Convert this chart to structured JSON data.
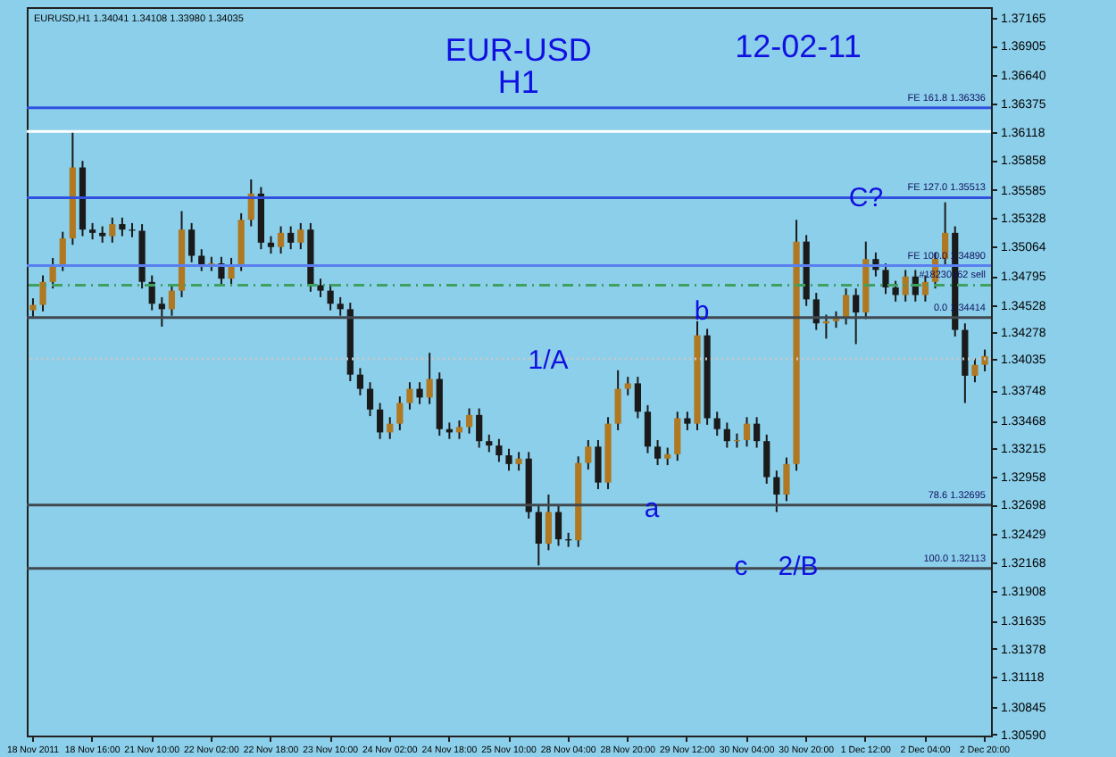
{
  "chart_data": {
    "type": "candlestick",
    "title": "EUR-USD",
    "subtitle": "H1",
    "annotations": [
      "12-02-11",
      "EURUSD,H1  1.34041 1.34108 1.33980 1.34035",
      {
        "text": "1/A",
        "y": 1.3403
      },
      {
        "text": "b",
        "y": 1.3448
      },
      {
        "text": "a",
        "y": 1.3267
      },
      "c",
      "2/B",
      {
        "text": "C?",
        "y": 1.3552
      }
    ],
    "categories": [
      "18 Nov 2011",
      null,
      null,
      null,
      null,
      null,
      "18 Nov 16:00",
      null,
      null,
      null,
      null,
      null,
      "21 Nov 10:00",
      null,
      null,
      null,
      null,
      null,
      "22 Nov 02:00",
      null,
      null,
      null,
      null,
      null,
      "22 Nov 18:00",
      null,
      null,
      null,
      null,
      null,
      "23 Nov 10:00",
      null,
      null,
      null,
      null,
      null,
      "24 Nov 02:00",
      null,
      null,
      null,
      null,
      null,
      "24 Nov 18:00",
      null,
      null,
      null,
      null,
      null,
      "25 Nov 10:00",
      null,
      null,
      null,
      null,
      null,
      "28 Nov 04:00",
      null,
      null,
      null,
      null,
      null,
      "28 Nov 20:00",
      null,
      null,
      null,
      null,
      null,
      "29 Nov 12:00",
      null,
      null,
      null,
      null,
      null,
      "30 Nov 04:00",
      null,
      null,
      null,
      null,
      null,
      "30 Nov 20:00",
      null,
      null,
      null,
      null,
      null,
      "1 Dec 12:00",
      null,
      null,
      null,
      null,
      null,
      "2 Dec 04:00",
      null,
      null,
      null,
      null,
      null,
      "2 Dec 20:00"
    ],
    "ohlc": [
      [
        1.3448,
        1.3459,
        1.3442,
        1.3453
      ],
      [
        1.3453,
        1.348,
        1.3447,
        1.3474
      ],
      [
        1.3474,
        1.3496,
        1.3468,
        1.349
      ],
      [
        1.349,
        1.352,
        1.3484,
        1.3514
      ],
      [
        1.3514,
        1.3612,
        1.3508,
        1.3579
      ],
      [
        1.3579,
        1.3585,
        1.3516,
        1.3522
      ],
      [
        1.3522,
        1.3528,
        1.3513,
        1.3519
      ],
      [
        1.3519,
        1.3525,
        1.351,
        1.3516
      ],
      [
        1.3516,
        1.3533,
        1.351,
        1.3527
      ],
      [
        1.3527,
        1.3533,
        1.3516,
        1.3522
      ],
      [
        1.3522,
        1.3528,
        1.3515,
        1.3521
      ],
      [
        1.3521,
        1.3527,
        1.3468,
        1.3474
      ],
      [
        1.3474,
        1.348,
        1.3448,
        1.3454
      ],
      [
        1.3454,
        1.346,
        1.3433,
        1.3449
      ],
      [
        1.3449,
        1.3472,
        1.3443,
        1.3466
      ],
      [
        1.3466,
        1.3539,
        1.346,
        1.3522
      ],
      [
        1.3522,
        1.3528,
        1.3492,
        1.3498
      ],
      [
        1.3498,
        1.3504,
        1.3484,
        1.349
      ],
      [
        1.349,
        1.3497,
        1.3484,
        1.3491
      ],
      [
        1.3491,
        1.3497,
        1.3471,
        1.3477
      ],
      [
        1.3477,
        1.3496,
        1.3471,
        1.349
      ],
      [
        1.349,
        1.3537,
        1.3484,
        1.3531
      ],
      [
        1.3531,
        1.3568,
        1.3525,
        1.3555
      ],
      [
        1.3555,
        1.3561,
        1.3504,
        1.351
      ],
      [
        1.351,
        1.3516,
        1.35,
        1.3506
      ],
      [
        1.3506,
        1.3525,
        1.35,
        1.3519
      ],
      [
        1.3519,
        1.3525,
        1.3504,
        1.351
      ],
      [
        1.351,
        1.3528,
        1.3504,
        1.3522
      ],
      [
        1.3522,
        1.3528,
        1.3465,
        1.3471
      ],
      [
        1.3471,
        1.3477,
        1.346,
        1.3466
      ],
      [
        1.3466,
        1.3472,
        1.3448,
        1.3454
      ],
      [
        1.3454,
        1.346,
        1.3443,
        1.3449
      ],
      [
        1.3449,
        1.3455,
        1.3383,
        1.3389
      ],
      [
        1.3389,
        1.3395,
        1.337,
        1.3376
      ],
      [
        1.3376,
        1.3382,
        1.3351,
        1.3357
      ],
      [
        1.3357,
        1.3363,
        1.333,
        1.3336
      ],
      [
        1.3336,
        1.335,
        1.333,
        1.3344
      ],
      [
        1.3344,
        1.3369,
        1.3338,
        1.3363
      ],
      [
        1.3363,
        1.3382,
        1.3357,
        1.3376
      ],
      [
        1.3376,
        1.3382,
        1.3362,
        1.3368
      ],
      [
        1.3368,
        1.3409,
        1.3362,
        1.3385
      ],
      [
        1.3385,
        1.3391,
        1.3333,
        1.3339
      ],
      [
        1.3339,
        1.3345,
        1.333,
        1.3336
      ],
      [
        1.3336,
        1.3347,
        1.333,
        1.3341
      ],
      [
        1.3341,
        1.3358,
        1.3335,
        1.3352
      ],
      [
        1.3352,
        1.3358,
        1.3322,
        1.3328
      ],
      [
        1.3328,
        1.3334,
        1.3318,
        1.3324
      ],
      [
        1.3324,
        1.333,
        1.3309,
        1.3315
      ],
      [
        1.3315,
        1.3321,
        1.3301,
        1.3307
      ],
      [
        1.3307,
        1.3318,
        1.3301,
        1.3312
      ],
      [
        1.3312,
        1.3318,
        1.3257,
        1.3263
      ],
      [
        1.3263,
        1.3269,
        1.3214,
        1.3234
      ],
      [
        1.3234,
        1.3279,
        1.3228,
        1.3263
      ],
      [
        1.3263,
        1.3269,
        1.3232,
        1.3238
      ],
      [
        1.3238,
        1.3244,
        1.3231,
        1.3237
      ],
      [
        1.3237,
        1.3314,
        1.3231,
        1.3308
      ],
      [
        1.3308,
        1.3329,
        1.3302,
        1.3323
      ],
      [
        1.3323,
        1.3329,
        1.3284,
        1.329
      ],
      [
        1.329,
        1.335,
        1.3284,
        1.3344
      ],
      [
        1.3344,
        1.3393,
        1.3338,
        1.3376
      ],
      [
        1.3376,
        1.3387,
        1.337,
        1.3381
      ],
      [
        1.3381,
        1.3387,
        1.3349,
        1.3355
      ],
      [
        1.3355,
        1.3361,
        1.3317,
        1.3323
      ],
      [
        1.3323,
        1.3329,
        1.3306,
        1.3312
      ],
      [
        1.3312,
        1.3322,
        1.3306,
        1.3316
      ],
      [
        1.3316,
        1.3355,
        1.331,
        1.3349
      ],
      [
        1.3349,
        1.3355,
        1.3338,
        1.3344
      ],
      [
        1.3344,
        1.3438,
        1.3338,
        1.3425
      ],
      [
        1.3425,
        1.3431,
        1.3343,
        1.3349
      ],
      [
        1.3349,
        1.3355,
        1.3333,
        1.3339
      ],
      [
        1.3339,
        1.3345,
        1.3322,
        1.3328
      ],
      [
        1.3328,
        1.3335,
        1.3322,
        1.3329
      ],
      [
        1.3329,
        1.335,
        1.3323,
        1.3344
      ],
      [
        1.3344,
        1.335,
        1.3322,
        1.3328
      ],
      [
        1.3328,
        1.3334,
        1.3289,
        1.3295
      ],
      [
        1.3295,
        1.3301,
        1.3263,
        1.3279
      ],
      [
        1.3279,
        1.3313,
        1.3273,
        1.3307
      ],
      [
        1.3307,
        1.3531,
        1.3301,
        1.3511
      ],
      [
        1.3511,
        1.3517,
        1.3452,
        1.3458
      ],
      [
        1.3458,
        1.3464,
        1.343,
        1.3436
      ],
      [
        1.3436,
        1.3444,
        1.3422,
        1.3438
      ],
      [
        1.3438,
        1.3447,
        1.3432,
        1.3441
      ],
      [
        1.3441,
        1.3468,
        1.3435,
        1.3462
      ],
      [
        1.3462,
        1.3468,
        1.3417,
        1.3446
      ],
      [
        1.3446,
        1.3511,
        1.344,
        1.3495
      ],
      [
        1.3495,
        1.3501,
        1.3479,
        1.3485
      ],
      [
        1.3485,
        1.3491,
        1.3463,
        1.3469
      ],
      [
        1.3469,
        1.3475,
        1.3456,
        1.3462
      ],
      [
        1.3462,
        1.3485,
        1.3456,
        1.3479
      ],
      [
        1.3479,
        1.3485,
        1.3456,
        1.3462
      ],
      [
        1.3462,
        1.348,
        1.3456,
        1.3474
      ],
      [
        1.3474,
        1.3501,
        1.3468,
        1.3495
      ],
      [
        1.3495,
        1.3547,
        1.3489,
        1.3519
      ],
      [
        1.3519,
        1.3525,
        1.3424,
        1.343
      ],
      [
        1.343,
        1.3436,
        1.3363,
        1.3388
      ],
      [
        1.3388,
        1.3404,
        1.3382,
        1.3398
      ],
      [
        1.3398,
        1.3412,
        1.3392,
        1.3406
      ]
    ],
    "colors": [
      "#b07820",
      "#b07820",
      "#b07820",
      "#b07820",
      "#b07820",
      "#1a1a1a",
      "#1a1a1a",
      "#1a1a1a",
      "#b07820",
      "#1a1a1a",
      "#1a1a1a",
      "#1a1a1a",
      "#1a1a1a",
      "#1a1a1a",
      "#b07820",
      "#b07820",
      "#1a1a1a",
      "#1a1a1a",
      "#b07820",
      "#1a1a1a",
      "#b07820",
      "#b07820",
      "#b07820",
      "#1a1a1a",
      "#1a1a1a",
      "#b07820",
      "#1a1a1a",
      "#b07820",
      "#1a1a1a",
      "#1a1a1a",
      "#1a1a1a",
      "#1a1a1a",
      "#1a1a1a",
      "#1a1a1a",
      "#1a1a1a",
      "#1a1a1a",
      "#b07820",
      "#b07820",
      "#b07820",
      "#1a1a1a",
      "#b07820",
      "#1a1a1a",
      "#1a1a1a",
      "#b07820",
      "#b07820",
      "#1a1a1a",
      "#1a1a1a",
      "#1a1a1a",
      "#1a1a1a",
      "#b07820",
      "#1a1a1a",
      "#1a1a1a",
      "#b07820",
      "#1a1a1a",
      "#1a1a1a",
      "#b07820",
      "#b07820",
      "#1a1a1a",
      "#b07820",
      "#b07820",
      "#b07820",
      "#1a1a1a",
      "#1a1a1a",
      "#1a1a1a",
      "#b07820",
      "#b07820",
      "#1a1a1a",
      "#b07820",
      "#1a1a1a",
      "#1a1a1a",
      "#1a1a1a",
      "#b07820",
      "#b07820",
      "#1a1a1a",
      "#1a1a1a",
      "#1a1a1a",
      "#b07820",
      "#b07820",
      "#1a1a1a",
      "#1a1a1a",
      "#b07820",
      "#b07820",
      "#b07820",
      "#1a1a1a",
      "#b07820",
      "#1a1a1a",
      "#1a1a1a",
      "#1a1a1a",
      "#b07820",
      "#1a1a1a",
      "#b07820",
      "#b07820",
      "#b07820",
      "#1a1a1a",
      "#1a1a1a",
      "#b07820",
      "#b07820"
    ],
    "ref_lines": [
      {
        "axis": "y",
        "value": 1.3612,
        "color": "#ffffff",
        "line_style": "solid"
      },
      {
        "axis": "y",
        "value": 1.36336,
        "label": "FE 161.8  1.36336",
        "color": "#3050e0",
        "line_style": "solid"
      },
      {
        "axis": "y",
        "value": 1.35513,
        "label": "FE 127.0  1.35513",
        "color": "#3050e0",
        "line_style": "solid"
      },
      {
        "axis": "y",
        "value": 1.3489,
        "label": "FE 100.0  1.34890",
        "color": "#5a80f0",
        "line_style": "solid"
      },
      {
        "axis": "y",
        "value": 1.3471,
        "label": "#18230162 sell",
        "color": "#40a060",
        "line_style": "dashed"
      },
      {
        "axis": "y",
        "value": 1.34414,
        "label": "0.0  1.34414",
        "color": "#404850",
        "line_style": "solid"
      },
      {
        "axis": "y",
        "value": 1.34035,
        "color": "#c8c8c8",
        "line_style": "dotted"
      },
      {
        "axis": "y",
        "value": 1.32695,
        "label": "78.6  1.32695",
        "color": "#404850",
        "line_style": "solid"
      },
      {
        "axis": "y",
        "value": 1.32113,
        "label": "100.0  1.32113",
        "color": "#404850",
        "line_style": "solid"
      }
    ],
    "ylim": [
      1.3058,
      1.3726
    ],
    "yticks": [
      1.37165,
      1.36905,
      {
        "value": 1.3664,
        "label": "1.36640"
      },
      1.36375,
      1.36118,
      1.35858,
      1.35585,
      1.35328,
      1.35064,
      1.34795,
      1.34528,
      1.34278,
      1.34035,
      1.33748,
      1.33468,
      1.33215,
      1.32958,
      1.32698,
      1.32429,
      1.32168,
      1.31908,
      1.31635,
      1.31378,
      1.31118,
      1.30845,
      {
        "value": 1.3059,
        "label": "1.30590"
      }
    ],
    "grid": false
  }
}
